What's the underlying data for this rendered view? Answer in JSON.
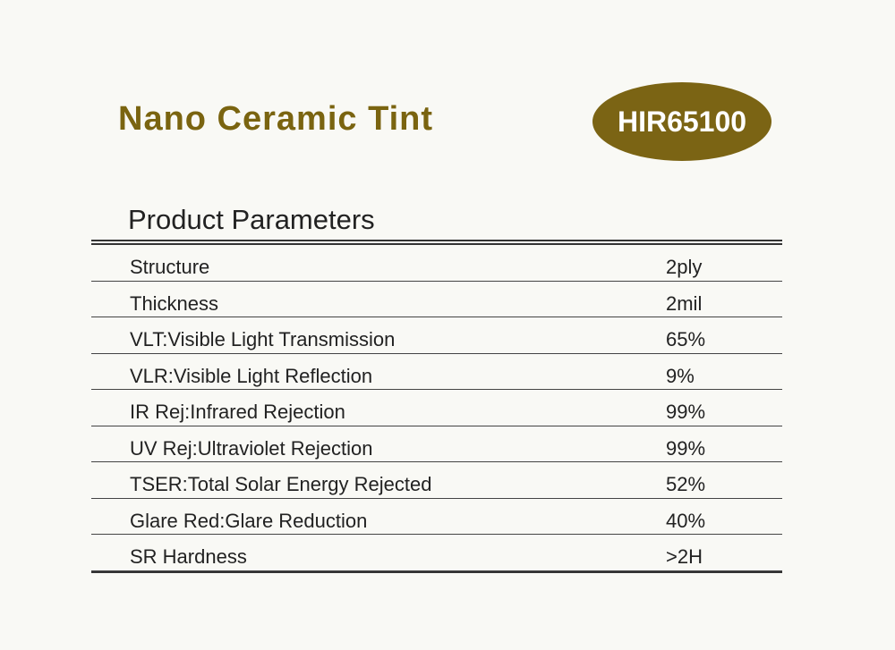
{
  "header": {
    "title": "Nano Ceramic Tint",
    "model": "HIR65100"
  },
  "table": {
    "title": "Product Parameters",
    "rows": [
      [
        "Structure",
        "2ply"
      ],
      [
        "Thickness",
        "2mil"
      ],
      [
        "VLT:Visible Light Transmission",
        "65%"
      ],
      [
        "VLR:Visible Light Reflection",
        "9%"
      ],
      [
        "IR Rej:Infrared Rejection",
        "99%"
      ],
      [
        "UV Rej:Ultraviolet Rejection",
        "99%"
      ],
      [
        "TSER:Total Solar Energy Rejected",
        "52%"
      ],
      [
        "Glare Red:Glare Reduction",
        "40%"
      ],
      [
        "SR Hardness",
        ">2H"
      ]
    ]
  }
}
